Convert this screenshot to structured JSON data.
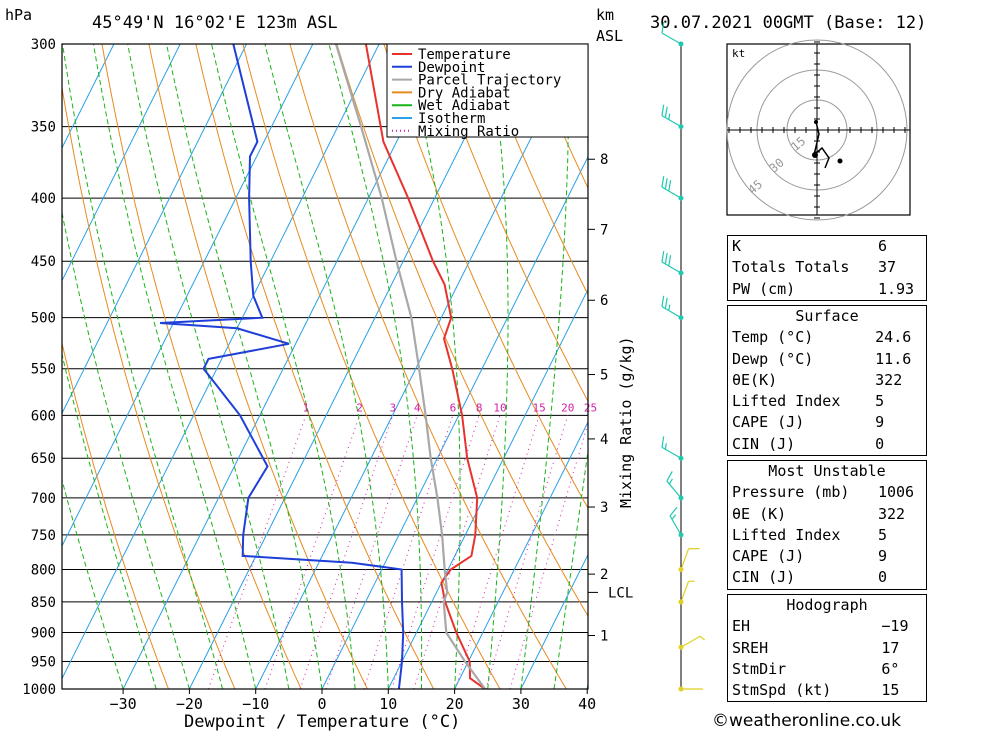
{
  "header": {
    "pressure_unit": "hPa",
    "location": "45°49'N  16°02'E  123m  ASL",
    "height_unit_km": "km",
    "height_unit_asl": "ASL",
    "datetime": "30.07.2021  00GMT  (Base: 12)"
  },
  "footer": {
    "copyright": "©weatheronline.co.uk"
  },
  "colors": {
    "temperature": "#e8322d",
    "dewpoint": "#1e3fd8",
    "parcel": "#a8a8a8",
    "dry_adiabat": "#e88a20",
    "wet_adiabat": "#18b418",
    "isotherm": "#2aa0e6",
    "mixing_ratio": "#d020a8",
    "wind_barb": "#20c8b0"
  },
  "chart_data": {
    "type": "line",
    "chart_kind": "skew-T log-p sounding",
    "xlabel": "Dewpoint / Temperature (°C)",
    "ylabel": "",
    "secondary_ylabel": "Mixing Ratio (g/kg)",
    "x_ticks": [
      "−30",
      "−20",
      "−10",
      "0",
      "10",
      "20",
      "30",
      "40"
    ],
    "x_tick_values": [
      -30,
      -20,
      -10,
      0,
      10,
      20,
      30,
      40
    ],
    "pressure_levels": [
      300,
      350,
      400,
      450,
      500,
      550,
      600,
      650,
      700,
      750,
      800,
      850,
      900,
      950,
      1000
    ],
    "pressure_labels": [
      "300",
      "350",
      "400",
      "450",
      "500",
      "550",
      "600",
      "650",
      "700",
      "750",
      "800",
      "850",
      "900",
      "950",
      "1000"
    ],
    "height_km_labels": [
      {
        "label": "8",
        "p": 372
      },
      {
        "label": "7",
        "p": 424
      },
      {
        "label": "6",
        "p": 484
      },
      {
        "label": "5",
        "p": 556
      },
      {
        "label": "4",
        "p": 627
      },
      {
        "label": "3",
        "p": 712
      },
      {
        "label": "2",
        "p": 807
      },
      {
        "label": "1",
        "p": 905
      }
    ],
    "lcl": {
      "label": "LCL",
      "p": 835
    },
    "mixing_ratio_labels": [
      "1",
      "2",
      "3",
      "4",
      "6",
      "8",
      "10",
      "15",
      "20",
      "25"
    ],
    "mixing_ratio_values": [
      1,
      2,
      3,
      4,
      6,
      8,
      10,
      15,
      20,
      25
    ],
    "legend": [
      "Temperature",
      "Dewpoint",
      "Parcel Trajectory",
      "Dry Adiabat",
      "Wet Adiabat",
      "Isotherm",
      "Mixing Ratio"
    ],
    "series": [
      {
        "name": "Temperature",
        "p": [
          1000,
          980,
          950,
          900,
          850,
          820,
          800,
          780,
          750,
          700,
          650,
          600,
          550,
          520,
          500,
          470,
          450,
          400,
          360,
          300
        ],
        "t": [
          24.6,
          21.5,
          20.2,
          16.0,
          12.0,
          10.0,
          10.4,
          12.5,
          11.5,
          9.0,
          4.5,
          0.5,
          -4.5,
          -8.0,
          -8.5,
          -12.0,
          -15.5,
          -24.0,
          -32.0,
          -42.0
        ]
      },
      {
        "name": "Dewpoint",
        "p": [
          1000,
          950,
          900,
          850,
          800,
          790,
          780,
          750,
          700,
          660,
          600,
          550,
          540,
          525,
          510,
          505,
          500,
          480,
          450,
          400,
          370,
          360,
          300
        ],
        "t": [
          11.6,
          10.0,
          8.0,
          5.5,
          3.0,
          -5.0,
          -22.0,
          -23.5,
          -25.5,
          -25.0,
          -33.0,
          -42.0,
          -42.0,
          -31.0,
          -40.0,
          -52.0,
          -37.0,
          -40.0,
          -43.0,
          -48.0,
          -51.0,
          -51.0,
          -62.0
        ]
      },
      {
        "name": "Parcel Trajectory",
        "p": [
          1000,
          950,
          900,
          850,
          835,
          800,
          750,
          700,
          650,
          600,
          550,
          500,
          450,
          400,
          350,
          300
        ],
        "t": [
          24.6,
          19.5,
          14.5,
          11.8,
          11.6,
          9.5,
          6.5,
          3.0,
          -1.0,
          -5.0,
          -9.5,
          -14.5,
          -21.0,
          -28.0,
          -36.5,
          -46.5
        ]
      }
    ],
    "wind_barbs": [
      {
        "p": 300,
        "dir": 300,
        "kt": 10
      },
      {
        "p": 350,
        "dir": 300,
        "kt": 25
      },
      {
        "p": 400,
        "dir": 300,
        "kt": 30
      },
      {
        "p": 460,
        "dir": 300,
        "kt": 30
      },
      {
        "p": 500,
        "dir": 300,
        "kt": 25
      },
      {
        "p": 650,
        "dir": 300,
        "kt": 15
      },
      {
        "p": 700,
        "dir": 320,
        "kt": 15
      },
      {
        "p": 750,
        "dir": 330,
        "kt": 15
      },
      {
        "p": 800,
        "dir": 20,
        "kt": 10
      },
      {
        "p": 850,
        "dir": 20,
        "kt": 5
      },
      {
        "p": 925,
        "dir": 60,
        "kt": 5
      },
      {
        "p": 1000,
        "dir": 90,
        "kt": 2
      }
    ],
    "hodograph": {
      "unit_label": "kt",
      "ring_labels": [
        "15",
        "30",
        "45"
      ]
    }
  },
  "indices": {
    "top": [
      {
        "label": "K",
        "value": "6"
      },
      {
        "label": "Totals Totals",
        "value": "37"
      },
      {
        "label": "PW (cm)",
        "value": "1.93"
      }
    ],
    "surface": {
      "title": "Surface",
      "rows": [
        {
          "label": "Temp (°C)",
          "value": "24.6"
        },
        {
          "label": "Dewp (°C)",
          "value": "11.6"
        },
        {
          "label": "θE(K)",
          "value": "322"
        },
        {
          "label": "Lifted Index",
          "value": "5"
        },
        {
          "label": "CAPE (J)",
          "value": "9"
        },
        {
          "label": "CIN (J)",
          "value": "0"
        }
      ]
    },
    "most_unstable": {
      "title": "Most Unstable",
      "rows": [
        {
          "label": "Pressure (mb)",
          "value": "1006"
        },
        {
          "label": "θE (K)",
          "value": "322"
        },
        {
          "label": "Lifted Index",
          "value": "5"
        },
        {
          "label": "CAPE (J)",
          "value": "9"
        },
        {
          "label": "CIN (J)",
          "value": "0"
        }
      ]
    },
    "hodograph": {
      "title": "Hodograph",
      "rows": [
        {
          "label": "EH",
          "value": "−19"
        },
        {
          "label": "SREH",
          "value": "17"
        },
        {
          "label": "StmDir",
          "value": "6°"
        },
        {
          "label": "StmSpd (kt)",
          "value": "15"
        }
      ]
    }
  }
}
